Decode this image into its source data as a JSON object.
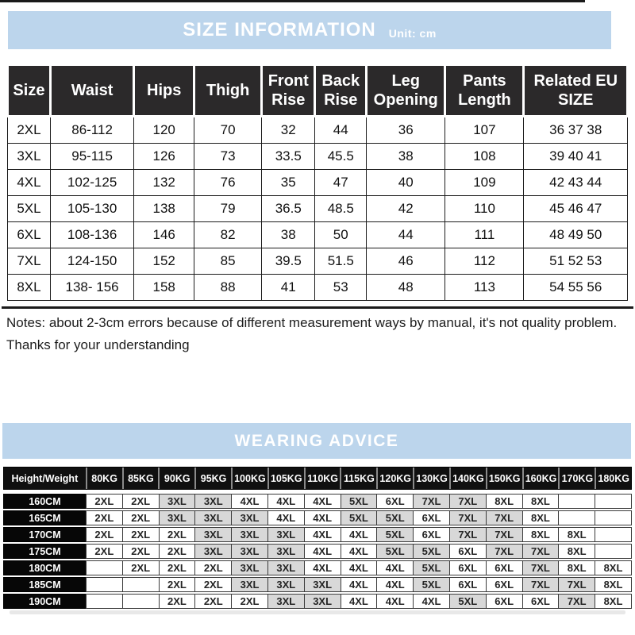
{
  "size_info": {
    "title": "SIZE INFORMATION",
    "unit": "Unit: cm",
    "columns": [
      "Size",
      "Waist",
      "Hips",
      "Thigh",
      "Front Rise",
      "Back Rise",
      "Leg Opening",
      "Pants Length",
      "Related EU SIZE"
    ],
    "rows": [
      [
        "2XL",
        "86-112",
        "120",
        "70",
        "32",
        "44",
        "36",
        "107",
        "36 37 38"
      ],
      [
        "3XL",
        "95-115",
        "126",
        "73",
        "33.5",
        "45.5",
        "38",
        "108",
        "39 40 41"
      ],
      [
        "4XL",
        "102-125",
        "132",
        "76",
        "35",
        "47",
        "40",
        "109",
        "42 43 44"
      ],
      [
        "5XL",
        "105-130",
        "138",
        "79",
        "36.5",
        "48.5",
        "42",
        "110",
        "45 46 47"
      ],
      [
        "6XL",
        "108-136",
        "146",
        "82",
        "38",
        "50",
        "44",
        "111",
        "48 49 50"
      ],
      [
        "7XL",
        "124-150",
        "152",
        "85",
        "39.5",
        "51.5",
        "46",
        "112",
        "51 52 53"
      ],
      [
        "8XL",
        "138- 156",
        "158",
        "88",
        "41",
        "53",
        "48",
        "113",
        "54 55 56"
      ]
    ]
  },
  "notes": {
    "text": "Notes: about 2-3cm errors because of different measurement ways by manual, it's not quality problem.",
    "thanks": "Thanks for your understanding"
  },
  "wearing_advice": {
    "title": "WEARING ADVICE",
    "columns": [
      "Height/Weight",
      "80KG",
      "85KG",
      "90KG",
      "95KG",
      "100KG",
      "105KG",
      "110KG",
      "115KG",
      "120KG",
      "130KG",
      "140KG",
      "150KG",
      "160KG",
      "170KG",
      "180KG"
    ],
    "gray_sizes": [
      "3XL",
      "5XL",
      "7XL"
    ],
    "rows": [
      {
        "label": "160CM",
        "cells": [
          "2XL",
          "2XL",
          "3XL",
          "3XL",
          "4XL",
          "4XL",
          "4XL",
          "5XL",
          "6XL",
          "7XL",
          "7XL",
          "8XL",
          "8XL",
          "",
          ""
        ]
      },
      {
        "label": "165CM",
        "cells": [
          "2XL",
          "2XL",
          "3XL",
          "3XL",
          "3XL",
          "4XL",
          "4XL",
          "5XL",
          "5XL",
          "6XL",
          "7XL",
          "7XL",
          "8XL",
          "",
          ""
        ]
      },
      {
        "label": "170CM",
        "cells": [
          "2XL",
          "2XL",
          "2XL",
          "3XL",
          "3XL",
          "3XL",
          "4XL",
          "4XL",
          "5XL",
          "6XL",
          "7XL",
          "7XL",
          "8XL",
          "8XL",
          ""
        ]
      },
      {
        "label": "175CM",
        "cells": [
          "2XL",
          "2XL",
          "2XL",
          "3XL",
          "3XL",
          "3XL",
          "4XL",
          "4XL",
          "5XL",
          "5XL",
          "6XL",
          "7XL",
          "7XL",
          "8XL",
          ""
        ]
      },
      {
        "label": "180CM",
        "cells": [
          "",
          "2XL",
          "2XL",
          "2XL",
          "3XL",
          "3XL",
          "4XL",
          "4XL",
          "4XL",
          "5XL",
          "6XL",
          "6XL",
          "7XL",
          "8XL",
          "8XL"
        ]
      },
      {
        "label": "185CM",
        "cells": [
          "",
          "",
          "2XL",
          "2XL",
          "3XL",
          "3XL",
          "3XL",
          "4XL",
          "4XL",
          "5XL",
          "6XL",
          "6XL",
          "7XL",
          "7XL",
          "8XL"
        ]
      },
      {
        "label": "190CM",
        "cells": [
          "",
          "",
          "2XL",
          "2XL",
          "2XL",
          "3XL",
          "3XL",
          "4XL",
          "4XL",
          "4XL",
          "5XL",
          "6XL",
          "6XL",
          "7XL",
          "8XL"
        ]
      }
    ]
  },
  "colors": {
    "banner_blue": "#bcd5ec",
    "table_header_black": "#2b292a",
    "shaded_cell_gray": "#d8d8d8"
  }
}
